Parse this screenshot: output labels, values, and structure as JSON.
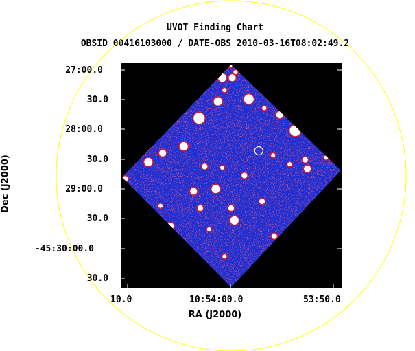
{
  "chart": {
    "title": "UVOT Finding Chart",
    "subtitle": "OBSID 00416103000 / DATE-OBS 2010-03-16T08:02:49.2",
    "xlabel": "RA (J2000)",
    "ylabel": "Dec (J2000)"
  },
  "colors": {
    "background": "#000000",
    "image": "#1a2fd6",
    "noise_red": "#e0162a",
    "star": "#ffffff",
    "ring": "#ffff00"
  },
  "chart_data": {
    "type": "image",
    "y_ticks": [
      "27:00.0",
      "30.0",
      "28:00.0",
      "30.0",
      "29:00.0",
      "30.0",
      "-45:30:00.0",
      "30.0"
    ],
    "x_ticks": [
      "10.0",
      "10:54:00.0",
      "53:50.0"
    ],
    "stars": [
      {
        "x": 0.495,
        "y": 0.01,
        "s": 3
      },
      {
        "x": 0.52,
        "y": 0.04,
        "s": 3
      },
      {
        "x": 0.46,
        "y": 0.065,
        "s": 6
      },
      {
        "x": 0.505,
        "y": 0.065,
        "s": 5
      },
      {
        "x": 0.47,
        "y": 0.12,
        "s": 3
      },
      {
        "x": 0.44,
        "y": 0.17,
        "s": 6
      },
      {
        "x": 0.585,
        "y": 0.06,
        "s": 4
      },
      {
        "x": 0.58,
        "y": 0.16,
        "s": 7
      },
      {
        "x": 0.65,
        "y": 0.2,
        "s": 3
      },
      {
        "x": 0.72,
        "y": 0.23,
        "s": 5
      },
      {
        "x": 0.79,
        "y": 0.3,
        "s": 8
      },
      {
        "x": 0.905,
        "y": 0.36,
        "s": 5
      },
      {
        "x": 0.945,
        "y": 0.35,
        "s": 6
      },
      {
        "x": 0.93,
        "y": 0.42,
        "s": 3
      },
      {
        "x": 0.835,
        "y": 0.43,
        "s": 4
      },
      {
        "x": 0.765,
        "y": 0.45,
        "s": 3
      },
      {
        "x": 0.69,
        "y": 0.41,
        "s": 3
      },
      {
        "x": 0.355,
        "y": 0.245,
        "s": 8
      },
      {
        "x": 0.285,
        "y": 0.37,
        "s": 6
      },
      {
        "x": 0.19,
        "y": 0.4,
        "s": 5
      },
      {
        "x": 0.125,
        "y": 0.44,
        "s": 6
      },
      {
        "x": 0.02,
        "y": 0.515,
        "s": 4
      },
      {
        "x": 0.38,
        "y": 0.46,
        "s": 4
      },
      {
        "x": 0.46,
        "y": 0.465,
        "s": 3
      },
      {
        "x": 0.43,
        "y": 0.56,
        "s": 6
      },
      {
        "x": 0.56,
        "y": 0.5,
        "s": 4
      },
      {
        "x": 0.845,
        "y": 0.47,
        "s": 5
      },
      {
        "x": 0.33,
        "y": 0.57,
        "s": 5
      },
      {
        "x": 0.18,
        "y": 0.635,
        "s": 3
      },
      {
        "x": 0.36,
        "y": 0.645,
        "s": 4
      },
      {
        "x": 0.5,
        "y": 0.645,
        "s": 4
      },
      {
        "x": 0.515,
        "y": 0.7,
        "s": 6
      },
      {
        "x": 0.64,
        "y": 0.615,
        "s": 4
      },
      {
        "x": 0.225,
        "y": 0.725,
        "s": 5
      },
      {
        "x": 0.4,
        "y": 0.74,
        "s": 3
      },
      {
        "x": 0.695,
        "y": 0.77,
        "s": 4
      },
      {
        "x": 0.32,
        "y": 0.84,
        "s": 4
      },
      {
        "x": 0.47,
        "y": 0.86,
        "s": 3
      }
    ],
    "target": {
      "x": 0.625,
      "y": 0.39
    }
  }
}
